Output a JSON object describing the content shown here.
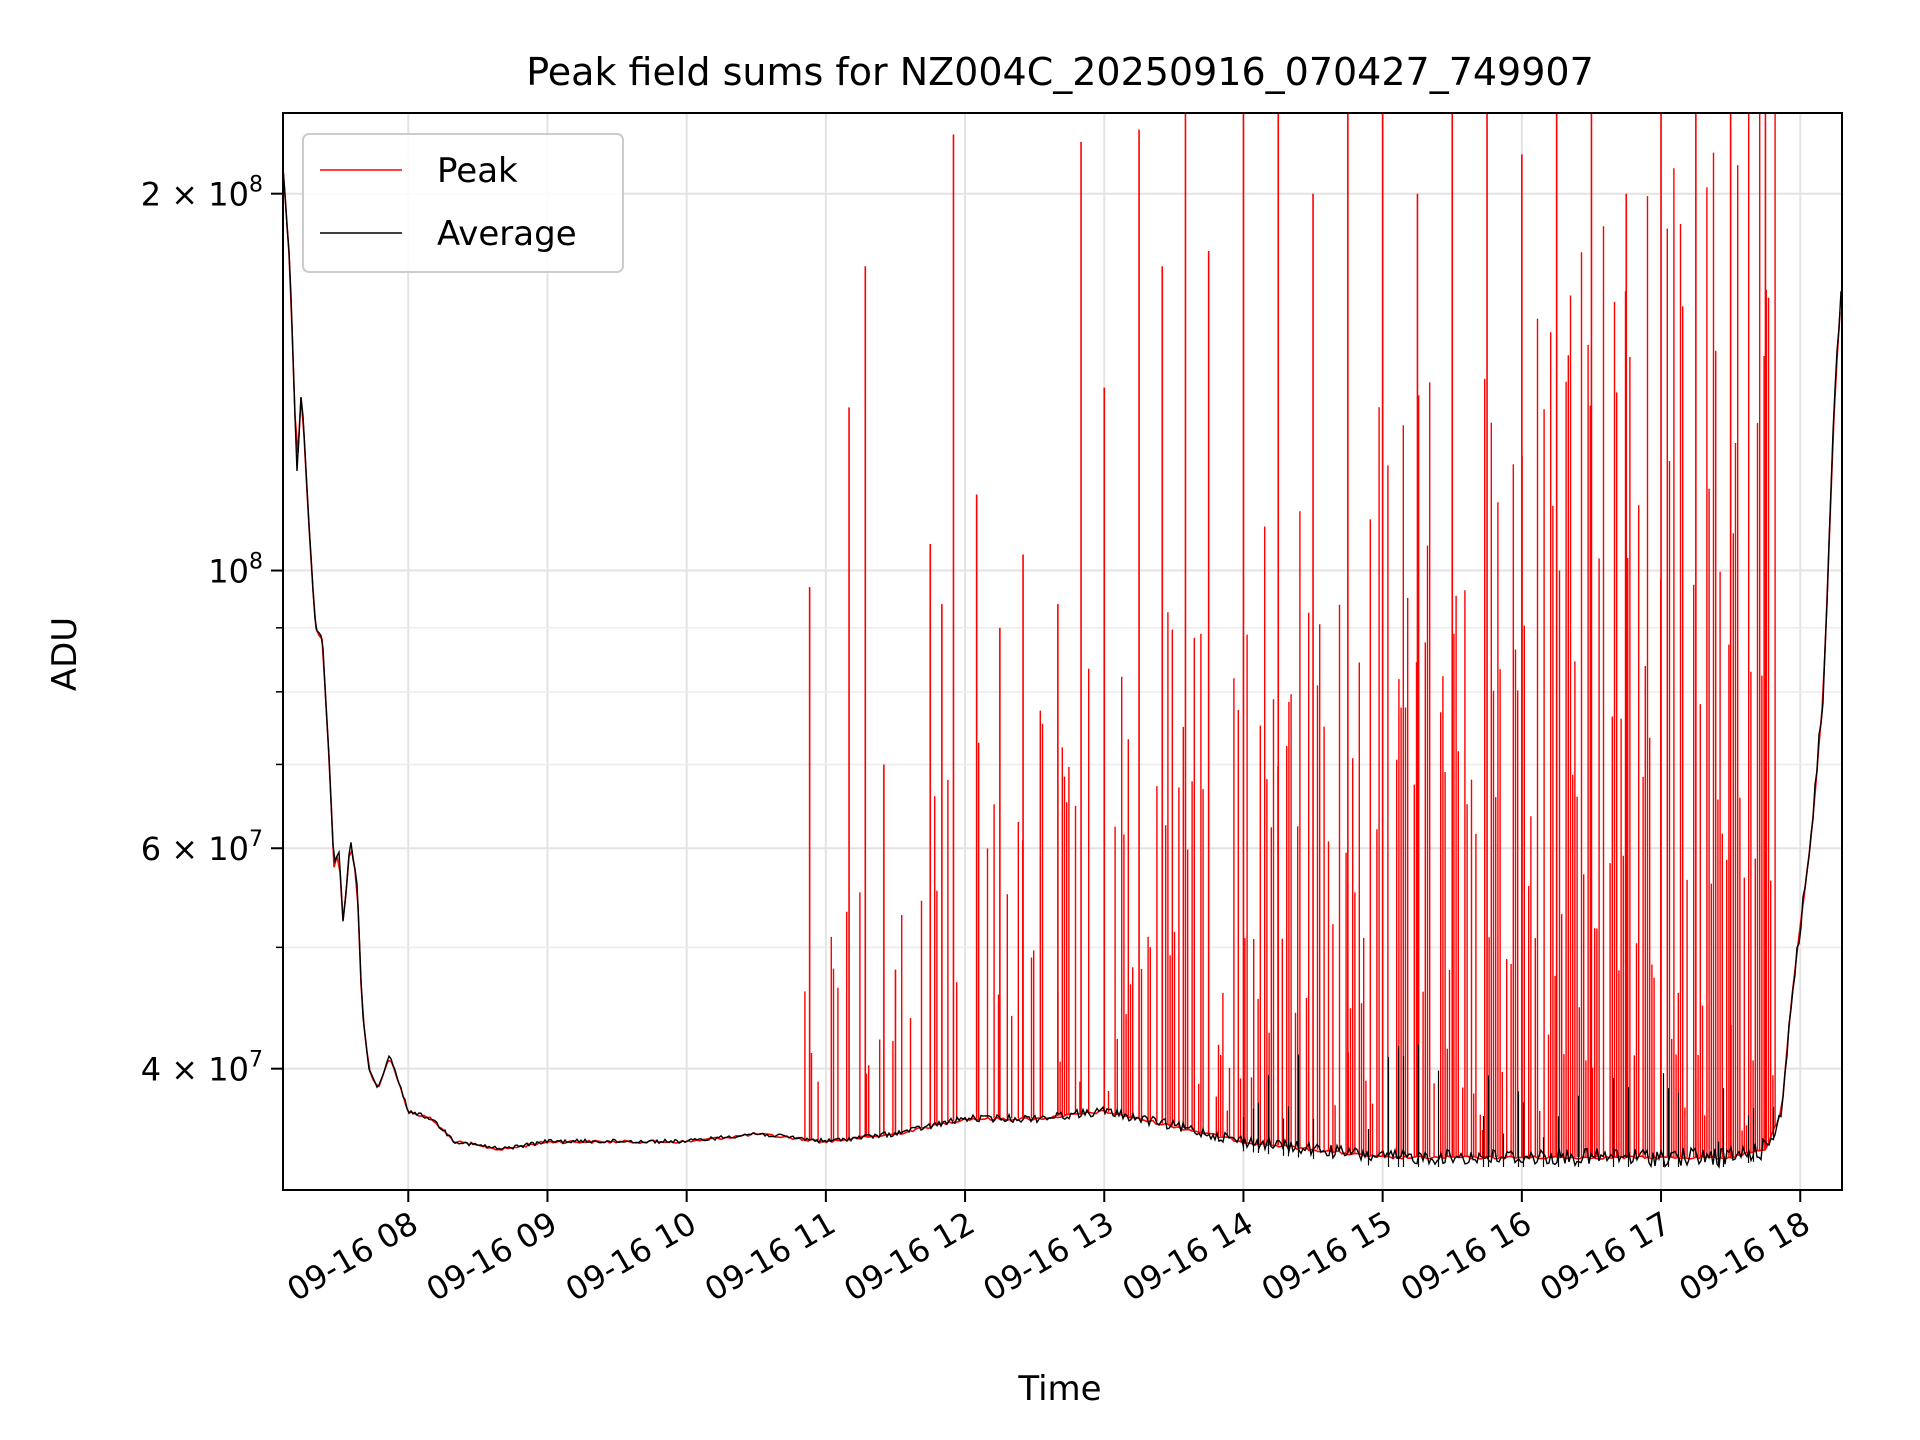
{
  "chart_data": {
    "type": "line",
    "title": "Peak field sums for NZ004C_20250916_070427_749907",
    "xlabel": "Time",
    "ylabel": "ADU",
    "x_scale": "time",
    "y_scale": "log",
    "x_range": [
      "2025-09-16 07:06",
      "2025-09-16 18:18"
    ],
    "ylim": [
      32000000,
      232000000
    ],
    "x_ticks": [
      {
        "value": "2025-09-16 08:00",
        "label": "09-16 08"
      },
      {
        "value": "2025-09-16 09:00",
        "label": "09-16 09"
      },
      {
        "value": "2025-09-16 10:00",
        "label": "09-16 10"
      },
      {
        "value": "2025-09-16 11:00",
        "label": "09-16 11"
      },
      {
        "value": "2025-09-16 12:00",
        "label": "09-16 12"
      },
      {
        "value": "2025-09-16 13:00",
        "label": "09-16 13"
      },
      {
        "value": "2025-09-16 14:00",
        "label": "09-16 14"
      },
      {
        "value": "2025-09-16 15:00",
        "label": "09-16 15"
      },
      {
        "value": "2025-09-16 16:00",
        "label": "09-16 16"
      },
      {
        "value": "2025-09-16 17:00",
        "label": "09-16 17"
      },
      {
        "value": "2025-09-16 18:00",
        "label": "09-16 18"
      }
    ],
    "y_major_ticks": [
      {
        "value": 40000000,
        "mantissa": "4",
        "exp": "7"
      },
      {
        "value": 60000000,
        "mantissa": "6",
        "exp": "7"
      },
      {
        "value": 100000000,
        "mantissa": "",
        "exp": "8"
      },
      {
        "value": 200000000,
        "mantissa": "2",
        "exp": "8"
      }
    ],
    "y_minor_ticks": [
      50000000,
      70000000,
      80000000,
      90000000
    ],
    "grid": true,
    "legend": {
      "position": "top-left",
      "entries": [
        {
          "name": "Peak",
          "color": "#ff0000"
        },
        {
          "name": "Average",
          "color": "#000000"
        }
      ]
    },
    "series": [
      {
        "name": "Average",
        "color": "#000000",
        "x": [
          "2025-09-16 07:06",
          "2025-09-16 07:09",
          "2025-09-16 07:12",
          "2025-09-16 07:14",
          "2025-09-16 07:17",
          "2025-09-16 07:20",
          "2025-09-16 07:23",
          "2025-09-16 07:26",
          "2025-09-16 07:28",
          "2025-09-16 07:30",
          "2025-09-16 07:32",
          "2025-09-16 07:35",
          "2025-09-16 07:38",
          "2025-09-16 07:40",
          "2025-09-16 07:43",
          "2025-09-16 07:47",
          "2025-09-16 07:52",
          "2025-09-16 08:00",
          "2025-09-16 08:10",
          "2025-09-16 08:20",
          "2025-09-16 08:40",
          "2025-09-16 09:00",
          "2025-09-16 09:30",
          "2025-09-16 10:00",
          "2025-09-16 10:30",
          "2025-09-16 11:00",
          "2025-09-16 11:30",
          "2025-09-16 12:00",
          "2025-09-16 12:30",
          "2025-09-16 13:00",
          "2025-09-16 13:30",
          "2025-09-16 14:00",
          "2025-09-16 14:30",
          "2025-09-16 15:00",
          "2025-09-16 15:30",
          "2025-09-16 16:00",
          "2025-09-16 16:30",
          "2025-09-16 17:00",
          "2025-09-16 17:30",
          "2025-09-16 17:45",
          "2025-09-16 17:52",
          "2025-09-16 17:56",
          "2025-09-16 18:00",
          "2025-09-16 18:05",
          "2025-09-16 18:10",
          "2025-09-16 18:15",
          "2025-09-16 18:18"
        ],
        "values": [
          210000000,
          175000000,
          120000000,
          140000000,
          110000000,
          90000000,
          88000000,
          70000000,
          58000000,
          60000000,
          52000000,
          61000000,
          56000000,
          45000000,
          40000000,
          38500000,
          41000000,
          37000000,
          36500000,
          35000000,
          34500000,
          35000000,
          35000000,
          35000000,
          35500000,
          35000000,
          35500000,
          36500000,
          36500000,
          37000000,
          36000000,
          35000000,
          34500000,
          34000000,
          34000000,
          34000000,
          34000000,
          34000000,
          34000000,
          34500000,
          37000000,
          45000000,
          52000000,
          62000000,
          80000000,
          140000000,
          170000000
        ]
      },
      {
        "name": "Peak",
        "color": "#ff0000",
        "note_baseline_follows_average": true,
        "spikes": [
          {
            "x": "2025-09-16 10:53",
            "value": 97000000
          },
          {
            "x": "2025-09-16 11:10",
            "value": 135000000
          },
          {
            "x": "2025-09-16 11:17",
            "value": 175000000
          },
          {
            "x": "2025-09-16 11:25",
            "value": 70000000
          },
          {
            "x": "2025-09-16 11:30",
            "value": 48000000
          },
          {
            "x": "2025-09-16 11:45",
            "value": 105000000
          },
          {
            "x": "2025-09-16 11:50",
            "value": 94000000
          },
          {
            "x": "2025-09-16 11:55",
            "value": 223000000
          },
          {
            "x": "2025-09-16 12:05",
            "value": 115000000
          },
          {
            "x": "2025-09-16 12:15",
            "value": 90000000
          },
          {
            "x": "2025-09-16 12:25",
            "value": 103000000
          },
          {
            "x": "2025-09-16 12:40",
            "value": 94000000
          },
          {
            "x": "2025-09-16 12:50",
            "value": 220000000
          },
          {
            "x": "2025-09-16 13:00",
            "value": 140000000
          },
          {
            "x": "2025-09-16 13:15",
            "value": 225000000
          },
          {
            "x": "2025-09-16 13:25",
            "value": 175000000
          },
          {
            "x": "2025-09-16 13:35",
            "value": 232000000
          },
          {
            "x": "2025-09-16 13:45",
            "value": 180000000
          },
          {
            "x": "2025-09-16 14:00",
            "value": 232000000
          },
          {
            "x": "2025-09-16 14:15",
            "value": 232000000
          },
          {
            "x": "2025-09-16 14:30",
            "value": 200000000
          },
          {
            "x": "2025-09-16 14:45",
            "value": 232000000
          },
          {
            "x": "2025-09-16 15:00",
            "value": 232000000
          },
          {
            "x": "2025-09-16 15:15",
            "value": 200000000
          },
          {
            "x": "2025-09-16 15:30",
            "value": 232000000
          },
          {
            "x": "2025-09-16 15:45",
            "value": 232000000
          },
          {
            "x": "2025-09-16 16:00",
            "value": 215000000
          },
          {
            "x": "2025-09-16 16:15",
            "value": 232000000
          },
          {
            "x": "2025-09-16 16:30",
            "value": 232000000
          },
          {
            "x": "2025-09-16 16:45",
            "value": 200000000
          },
          {
            "x": "2025-09-16 17:00",
            "value": 232000000
          },
          {
            "x": "2025-09-16 17:15",
            "value": 232000000
          },
          {
            "x": "2025-09-16 17:30",
            "value": 232000000
          },
          {
            "x": "2025-09-16 17:45",
            "value": 232000000
          }
        ]
      }
    ]
  }
}
